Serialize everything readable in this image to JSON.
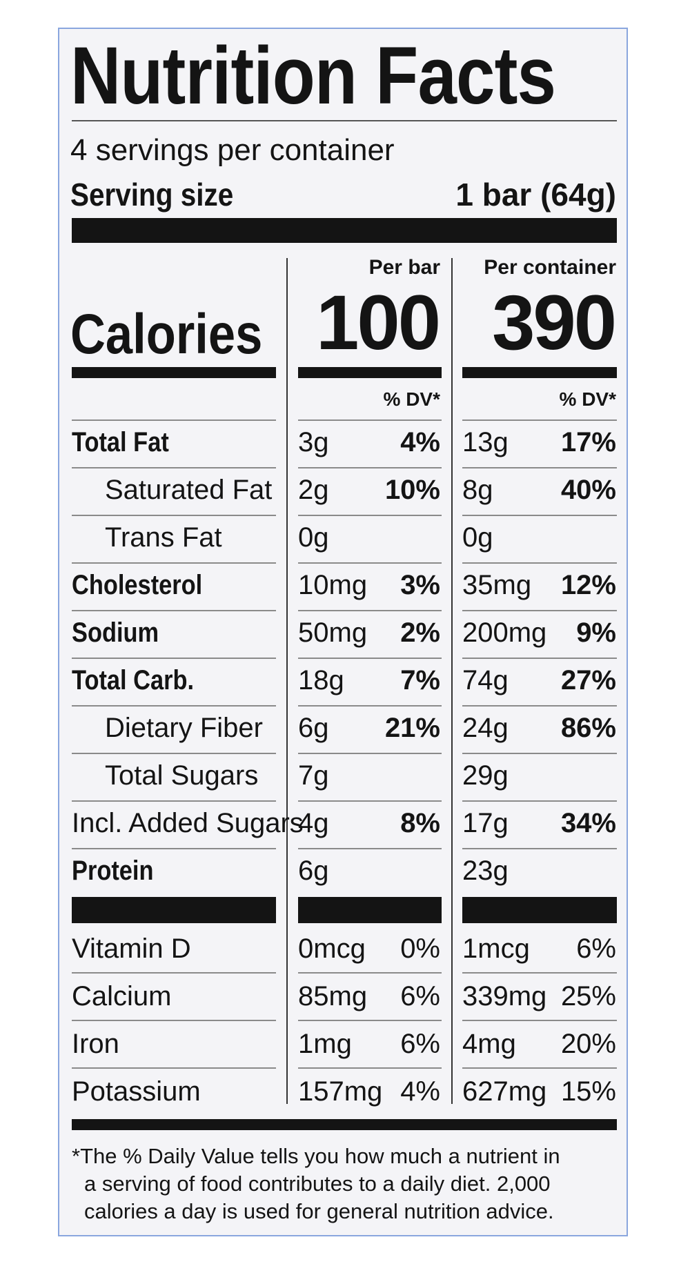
{
  "title": "Nutrition Facts",
  "servings": "4 servings per container",
  "serving_size_label": "Serving size",
  "serving_size_value": "1 bar (64g)",
  "columns": {
    "per_bar": "Per bar",
    "per_container": "Per container"
  },
  "calories": {
    "label": "Calories",
    "per_bar": "100",
    "per_container": "390"
  },
  "dv_header": "% DV*",
  "nutrients": [
    {
      "label": "Total Fat",
      "bold": true,
      "indent": false,
      "bar_amt": "3g",
      "bar_dv": "4%",
      "cont_amt": "13g",
      "cont_dv": "17%"
    },
    {
      "label": "Saturated Fat",
      "bold": false,
      "indent": true,
      "bar_amt": "2g",
      "bar_dv": "10%",
      "cont_amt": "8g",
      "cont_dv": "40%"
    },
    {
      "label": "Trans Fat",
      "bold": false,
      "indent": true,
      "bar_amt": "0g",
      "bar_dv": "",
      "cont_amt": "0g",
      "cont_dv": ""
    },
    {
      "label": "Cholesterol",
      "bold": true,
      "indent": false,
      "bar_amt": "10mg",
      "bar_dv": "3%",
      "cont_amt": "35mg",
      "cont_dv": "12%"
    },
    {
      "label": "Sodium",
      "bold": true,
      "indent": false,
      "bar_amt": "50mg",
      "bar_dv": "2%",
      "cont_amt": "200mg",
      "cont_dv": "9%"
    },
    {
      "label": "Total Carb.",
      "bold": true,
      "indent": false,
      "bar_amt": "18g",
      "bar_dv": "7%",
      "cont_amt": "74g",
      "cont_dv": "27%"
    },
    {
      "label": "Dietary Fiber",
      "bold": false,
      "indent": true,
      "bar_amt": "6g",
      "bar_dv": "21%",
      "cont_amt": "24g",
      "cont_dv": "86%"
    },
    {
      "label": "Total Sugars",
      "bold": false,
      "indent": true,
      "bar_amt": "7g",
      "bar_dv": "",
      "cont_amt": "29g",
      "cont_dv": ""
    },
    {
      "label": "Incl. Added Sugars",
      "bold": false,
      "indent": false,
      "bar_amt": "4g",
      "bar_dv": "8%",
      "cont_amt": "17g",
      "cont_dv": "34%"
    },
    {
      "label": "Protein",
      "bold": true,
      "indent": false,
      "bar_amt": "6g",
      "bar_dv": "",
      "cont_amt": "23g",
      "cont_dv": ""
    }
  ],
  "vitamins": [
    {
      "label": "Vitamin D",
      "bar_amt": "0mcg",
      "bar_dv": "0%",
      "cont_amt": "1mcg",
      "cont_dv": "6%"
    },
    {
      "label": "Calcium",
      "bar_amt": "85mg",
      "bar_dv": "6%",
      "cont_amt": "339mg",
      "cont_dv": "25%"
    },
    {
      "label": "Iron",
      "bar_amt": "1mg",
      "bar_dv": "6%",
      "cont_amt": "4mg",
      "cont_dv": "20%"
    },
    {
      "label": "Potassium",
      "bar_amt": "157mg",
      "bar_dv": "4%",
      "cont_amt": "627mg",
      "cont_dv": "15%"
    }
  ],
  "footnote": [
    "*The % Daily Value tells you how much a nutrient in",
    "a serving of food contributes to a daily diet. 2,000",
    "calories a day is used for general nutrition advice."
  ]
}
